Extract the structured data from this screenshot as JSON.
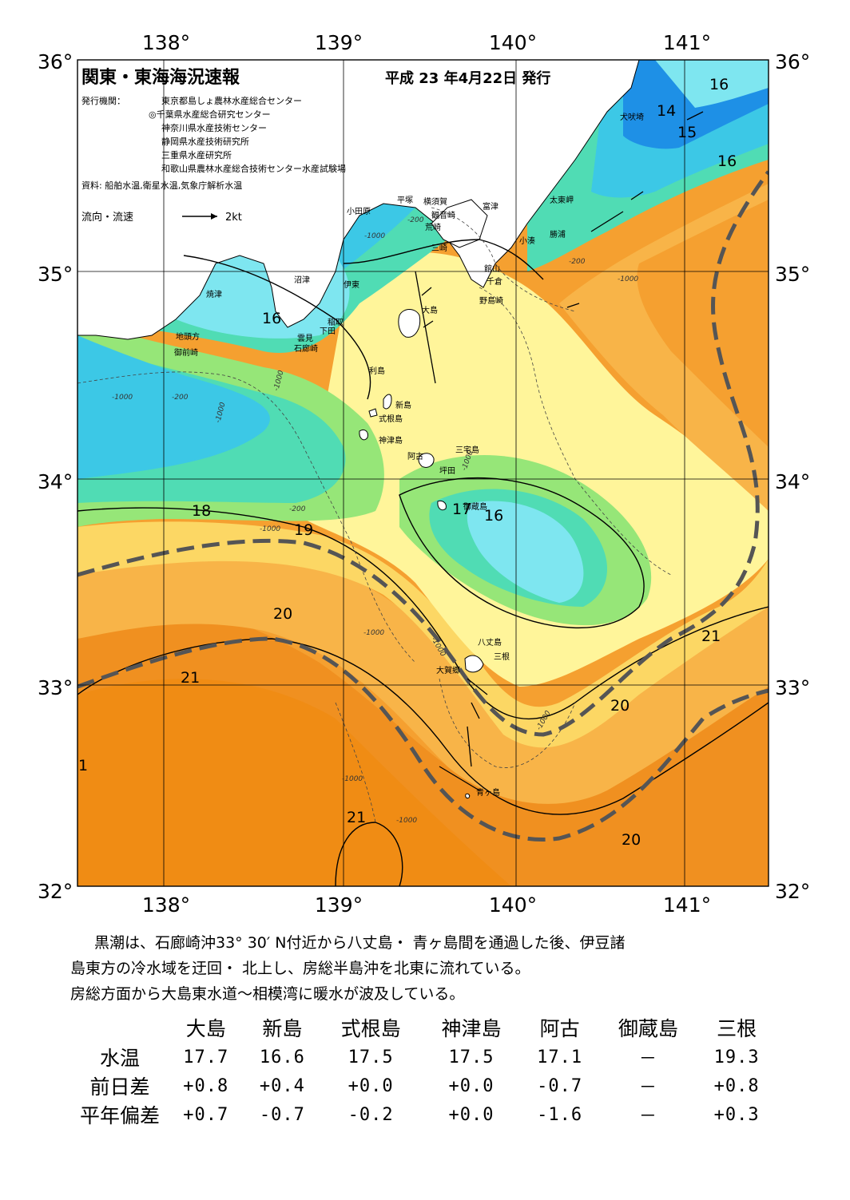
{
  "map": {
    "title": "関東・東海海況速報",
    "date": "平成 23 年4月22日 発行",
    "issuer_label": "発行機関：",
    "issuers": [
      "東京都島しょ農林水産総合センター",
      "◎千葉県水産総合研究センター",
      "神奈川県水産技術センター",
      "静岡県水産技術研究所",
      "三重県水産研究所",
      "和歌山県農林水産総合技術センター水産試験場"
    ],
    "sources": "資料: 船舶水温,衛星水温,気象庁解析水温",
    "current_legend": {
      "label": "流向・流速",
      "speed": "2kt"
    },
    "longitude_labels": [
      "138°",
      "139°",
      "140°",
      "141°"
    ],
    "latitude_labels": [
      "36°",
      "35°",
      "34°",
      "33°",
      "32°"
    ],
    "isotherm_labels": [
      "16",
      "14",
      "15",
      "16",
      "16",
      "18",
      "19",
      "20",
      "21",
      "16",
      "17",
      "21",
      "20",
      "20",
      "1",
      "21"
    ],
    "depth_label": "-1000",
    "depth_label_200": "-200",
    "place_names": [
      "犬吠埼",
      "太東岬",
      "勝浦",
      "小湊",
      "富津",
      "横須賀",
      "観音崎",
      "荒崎",
      "平塚",
      "小田原",
      "三崎",
      "館山",
      "千倉",
      "野島崎",
      "沼津",
      "伊東",
      "焼津",
      "稲取",
      "下田",
      "雲見",
      "石廊崎",
      "地頭方",
      "御前崎",
      "大島",
      "利島",
      "新島",
      "式根島",
      "神津島",
      "三宅島",
      "阿古",
      "坪田",
      "御蔵島",
      "八丈島",
      "三根",
      "大賀郷",
      "青ヶ島"
    ],
    "colors": {
      "very_cold": "#1e90e6",
      "cold": "#3cc8e6",
      "cyan": "#7ee6f0",
      "teal": "#50dcb4",
      "green": "#96e678",
      "yellow_green": "#d7ee7a",
      "light_yellow": "#fff59a",
      "yellow": "#fcd764",
      "light_orange": "#f8b448",
      "orange": "#f5a030",
      "deep_orange": "#f08c14",
      "kuroshio_axis": "#555555",
      "land": "#ffffff"
    }
  },
  "commentary": [
    "黒潮は、石廊崎沖33° 30′ N付近から八丈島・ 青ヶ島間を通過した後、伊豆諸",
    "島東方の冷水域を迂回・ 北上し、房総半島沖を北東に流れている。",
    "房総方面から大島東水道～相模湾に暖水が波及している。"
  ],
  "table": {
    "columns": [
      "大島",
      "新島",
      "式根島",
      "神津島",
      "阿古",
      "御蔵島",
      "三根"
    ],
    "rows": [
      {
        "label": "水温",
        "values": [
          "17.7",
          "16.6",
          "17.5",
          "17.5",
          "17.1",
          "－",
          "19.3"
        ]
      },
      {
        "label": "前日差",
        "values": [
          "+0.8",
          "+0.4",
          "+0.0",
          "+0.0",
          "-0.7",
          "－",
          "+0.8"
        ]
      },
      {
        "label": "平年偏差",
        "values": [
          "+0.7",
          "-0.7",
          "-0.2",
          "+0.0",
          "-1.6",
          "－",
          "+0.3"
        ]
      }
    ]
  }
}
